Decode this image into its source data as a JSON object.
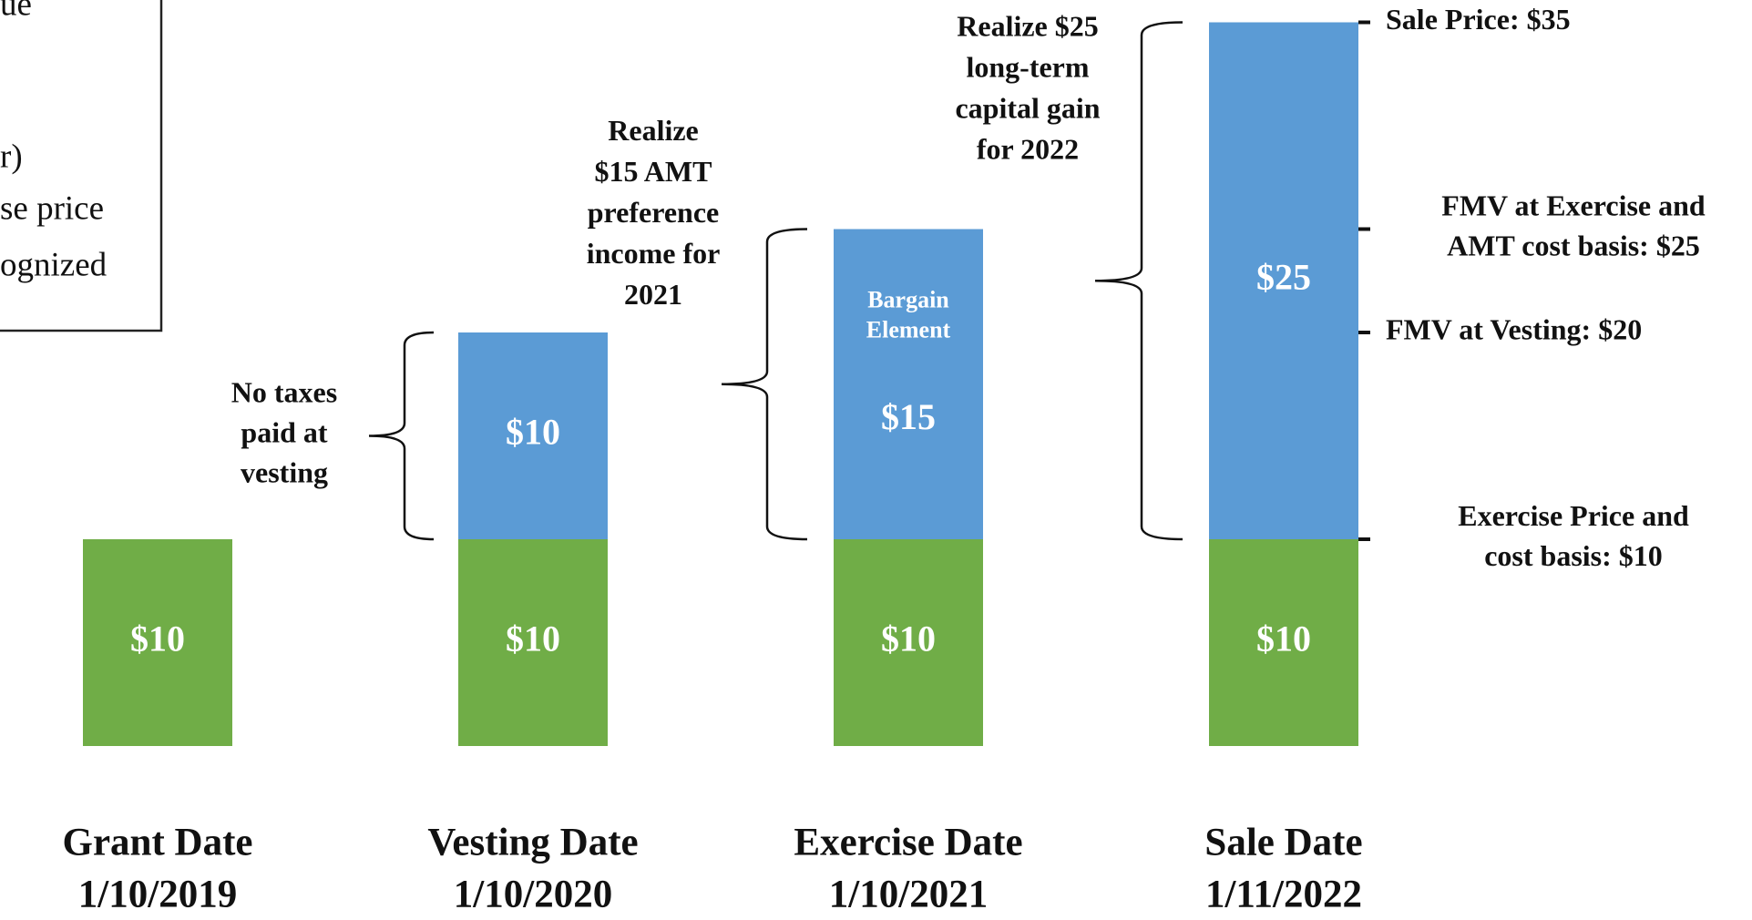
{
  "chart_data": {
    "type": "bar",
    "stacked": true,
    "categories": [
      "Grant Date\n1/10/2019",
      "Vesting Date\n1/10/2020",
      "Exercise Date\n1/10/2021",
      "Sale Date\n1/11/2022"
    ],
    "series": [
      {
        "color": "#70ad47",
        "values": [
          10,
          10,
          10,
          10
        ],
        "value_labels": [
          "$10",
          "$10",
          "$10",
          "$10"
        ]
      },
      {
        "color": "#5b9bd5",
        "values": [
          null,
          10,
          15,
          25
        ],
        "value_labels": [
          null,
          "$10",
          "$15",
          "$25"
        ]
      }
    ],
    "ylim": [
      0,
      35
    ],
    "yticks": [
      {
        "value": 35,
        "label": "Sale Price: $35"
      },
      {
        "value": 25,
        "label": "FMV at Exercise and\nAMT cost basis: $25"
      },
      {
        "value": 20,
        "label": "FMV at Vesting: $20"
      },
      {
        "value": 10,
        "label": "Exercise Price and\ncost basis: $10"
      }
    ],
    "annotations": [
      "No taxes\npaid at\nvesting",
      "Realize\n$15 AMT\npreference\nincome for\n2021",
      "Realize $25\nlong-term\ncapital gain\nfor 2022"
    ],
    "inner_label": "Bargain\nElement",
    "note_box": [
      "ue",
      "r)",
      "se price",
      "ognized"
    ]
  }
}
